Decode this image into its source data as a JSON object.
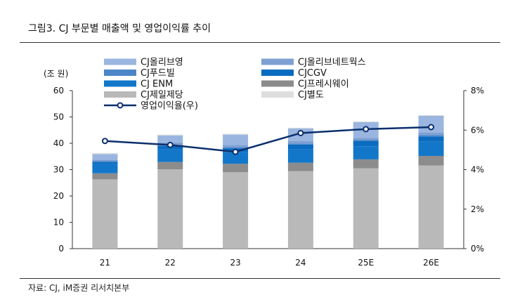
{
  "header": {
    "title": "그림3.  CJ 부문별 매출액 및 영업이익률 추이"
  },
  "footer": {
    "source": "자료: CJ, iM증권 리서치본부"
  },
  "colors": {
    "CJ올리브영": "#9ab6e0",
    "CJ올리브네트웍스": "#7fa0d2",
    "CJ푸드빌": "#4a86c8",
    "CJCGV": "#0a6cc0",
    "CJ ENM": "#1377c9",
    "CJ프레시웨이": "#8c8c8c",
    "CJ제일제당": "#b9b9b9",
    "CJ별도": "#dedede",
    "line": "#0b2f6e"
  },
  "chart_data": {
    "type": "bar",
    "stacked": true,
    "categories": [
      "21",
      "22",
      "23",
      "24",
      "25E",
      "26E"
    ],
    "left_axis": {
      "unit_label": "(조 원)",
      "ylim": [
        0,
        60
      ],
      "ticks": [
        "0",
        "10",
        "20",
        "30",
        "40",
        "50",
        "60"
      ]
    },
    "right_axis": {
      "ylim": [
        0,
        8
      ],
      "ticks": [
        "0%",
        "2%",
        "4%",
        "6%",
        "8%"
      ]
    },
    "series": [
      {
        "name": "CJ제일제당",
        "values": [
          26.3,
          30.1,
          29.0,
          29.4,
          30.5,
          31.6
        ]
      },
      {
        "name": "CJ프레시웨이",
        "values": [
          2.3,
          2.8,
          3.2,
          3.2,
          3.4,
          3.6
        ]
      },
      {
        "name": "CJ ENM",
        "values": [
          3.5,
          4.8,
          4.4,
          5.1,
          5.0,
          5.4
        ]
      },
      {
        "name": "CJCGV",
        "values": [
          0.8,
          1.3,
          1.5,
          1.8,
          1.9,
          2.0
        ]
      },
      {
        "name": "CJ푸드빌",
        "values": [
          0.3,
          0.4,
          0.4,
          0.4,
          0.4,
          0.5
        ]
      },
      {
        "name": "CJ올리브네트웍스",
        "values": [
          0.6,
          0.9,
          0.9,
          0.9,
          0.9,
          1.0
        ]
      },
      {
        "name": "CJ올리브영",
        "values": [
          2.1,
          2.7,
          3.9,
          4.8,
          5.9,
          6.3
        ]
      },
      {
        "name": "CJ별도",
        "values": [
          0.4,
          0.3,
          0.3,
          0.3,
          0.3,
          0.3
        ]
      }
    ],
    "line": {
      "name": "영업이익율(우)",
      "values": [
        5.45,
        5.25,
        4.9,
        5.85,
        6.05,
        6.15
      ]
    },
    "legend": [
      "CJ올리브영",
      "CJ올리브네트웍스",
      "CJ푸드빌",
      "CJCGV",
      "CJ ENM",
      "CJ프레시웨이",
      "CJ제일제당",
      "CJ별도",
      "영업이익율(우)"
    ]
  }
}
